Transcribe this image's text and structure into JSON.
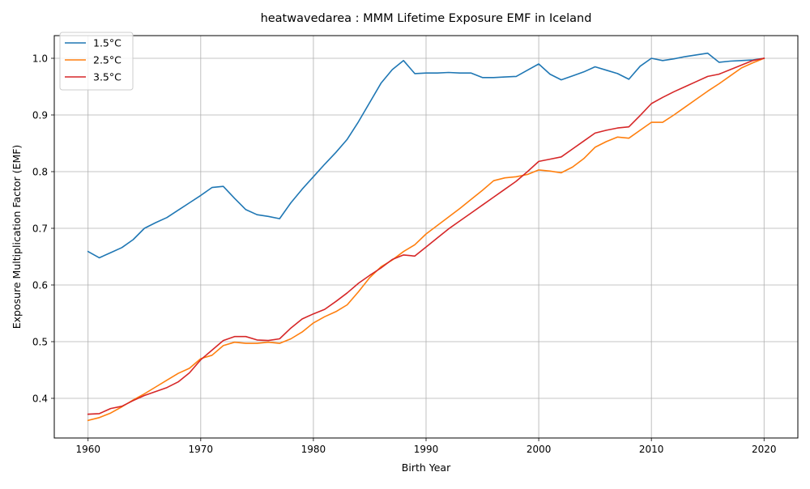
{
  "chart_data": {
    "type": "line",
    "title": "heatwavedarea : MMM Lifetime Exposure EMF in Iceland",
    "xlabel": "Birth Year",
    "ylabel": "Exposure Multiplication Factor (EMF)",
    "xlim": [
      1957,
      2023
    ],
    "ylim": [
      0.33,
      1.04
    ],
    "xticks": [
      1960,
      1970,
      1980,
      1990,
      2000,
      2010,
      2020
    ],
    "yticks": [
      0.4,
      0.5,
      0.6,
      0.7,
      0.8,
      0.9,
      1.0
    ],
    "xtick_labels": [
      "1960",
      "1970",
      "1980",
      "1990",
      "2000",
      "2010",
      "2020"
    ],
    "ytick_labels": [
      "0.4",
      "0.5",
      "0.6",
      "0.7",
      "0.8",
      "0.9",
      "1.0"
    ],
    "grid": true,
    "legend_position": "top-left",
    "x": [
      1960,
      1961,
      1962,
      1963,
      1964,
      1965,
      1966,
      1967,
      1968,
      1969,
      1970,
      1971,
      1972,
      1973,
      1974,
      1975,
      1976,
      1977,
      1978,
      1979,
      1980,
      1981,
      1982,
      1983,
      1984,
      1985,
      1986,
      1987,
      1988,
      1989,
      1990,
      1991,
      1992,
      1993,
      1994,
      1995,
      1996,
      1997,
      1998,
      1999,
      2000,
      2001,
      2002,
      2003,
      2004,
      2005,
      2006,
      2007,
      2008,
      2009,
      2010,
      2011,
      2012,
      2013,
      2014,
      2015,
      2016,
      2017,
      2018,
      2019,
      2020
    ],
    "series": [
      {
        "name": "1.5°C",
        "color": "#1f77b4",
        "values": [
          0.659,
          0.648,
          0.657,
          0.666,
          0.68,
          0.7,
          0.71,
          0.719,
          0.732,
          0.745,
          0.758,
          0.772,
          0.774,
          0.753,
          0.733,
          0.724,
          0.721,
          0.717,
          0.745,
          0.769,
          0.791,
          0.813,
          0.834,
          0.857,
          0.888,
          0.922,
          0.956,
          0.98,
          0.996,
          0.973,
          0.974,
          0.974,
          0.975,
          0.974,
          0.974,
          0.966,
          0.966,
          0.967,
          0.968,
          0.979,
          0.99,
          0.972,
          0.962,
          0.969,
          0.976,
          0.985,
          0.979,
          0.973,
          0.963,
          0.986,
          1.0,
          0.996,
          0.999,
          1.003,
          1.006,
          1.009,
          0.993,
          0.995,
          0.996,
          0.997,
          1.0
        ]
      },
      {
        "name": "2.5°C",
        "color": "#ff7f0e",
        "values": [
          0.361,
          0.366,
          0.374,
          0.385,
          0.397,
          0.408,
          0.42,
          0.432,
          0.444,
          0.453,
          0.47,
          0.476,
          0.493,
          0.499,
          0.497,
          0.497,
          0.499,
          0.497,
          0.505,
          0.517,
          0.533,
          0.544,
          0.553,
          0.565,
          0.588,
          0.613,
          0.632,
          0.644,
          0.659,
          0.671,
          0.69,
          0.705,
          0.72,
          0.735,
          0.751,
          0.767,
          0.784,
          0.789,
          0.791,
          0.795,
          0.803,
          0.801,
          0.798,
          0.808,
          0.823,
          0.843,
          0.853,
          0.861,
          0.859,
          0.873,
          0.887,
          0.887,
          0.9,
          0.914,
          0.928,
          0.942,
          0.955,
          0.969,
          0.983,
          0.992,
          1.0
        ]
      },
      {
        "name": "3.5°C",
        "color": "#d62728",
        "values": [
          0.372,
          0.373,
          0.382,
          0.386,
          0.396,
          0.405,
          0.412,
          0.419,
          0.429,
          0.445,
          0.468,
          0.485,
          0.502,
          0.509,
          0.509,
          0.503,
          0.502,
          0.505,
          0.524,
          0.54,
          0.549,
          0.557,
          0.571,
          0.586,
          0.603,
          0.617,
          0.63,
          0.645,
          0.653,
          0.651,
          0.667,
          0.683,
          0.699,
          0.713,
          0.727,
          0.741,
          0.755,
          0.769,
          0.783,
          0.8,
          0.818,
          0.822,
          0.826,
          0.84,
          0.854,
          0.868,
          0.873,
          0.877,
          0.879,
          0.899,
          0.92,
          0.931,
          0.941,
          0.95,
          0.959,
          0.968,
          0.972,
          0.98,
          0.988,
          0.996,
          1.0
        ]
      }
    ]
  }
}
